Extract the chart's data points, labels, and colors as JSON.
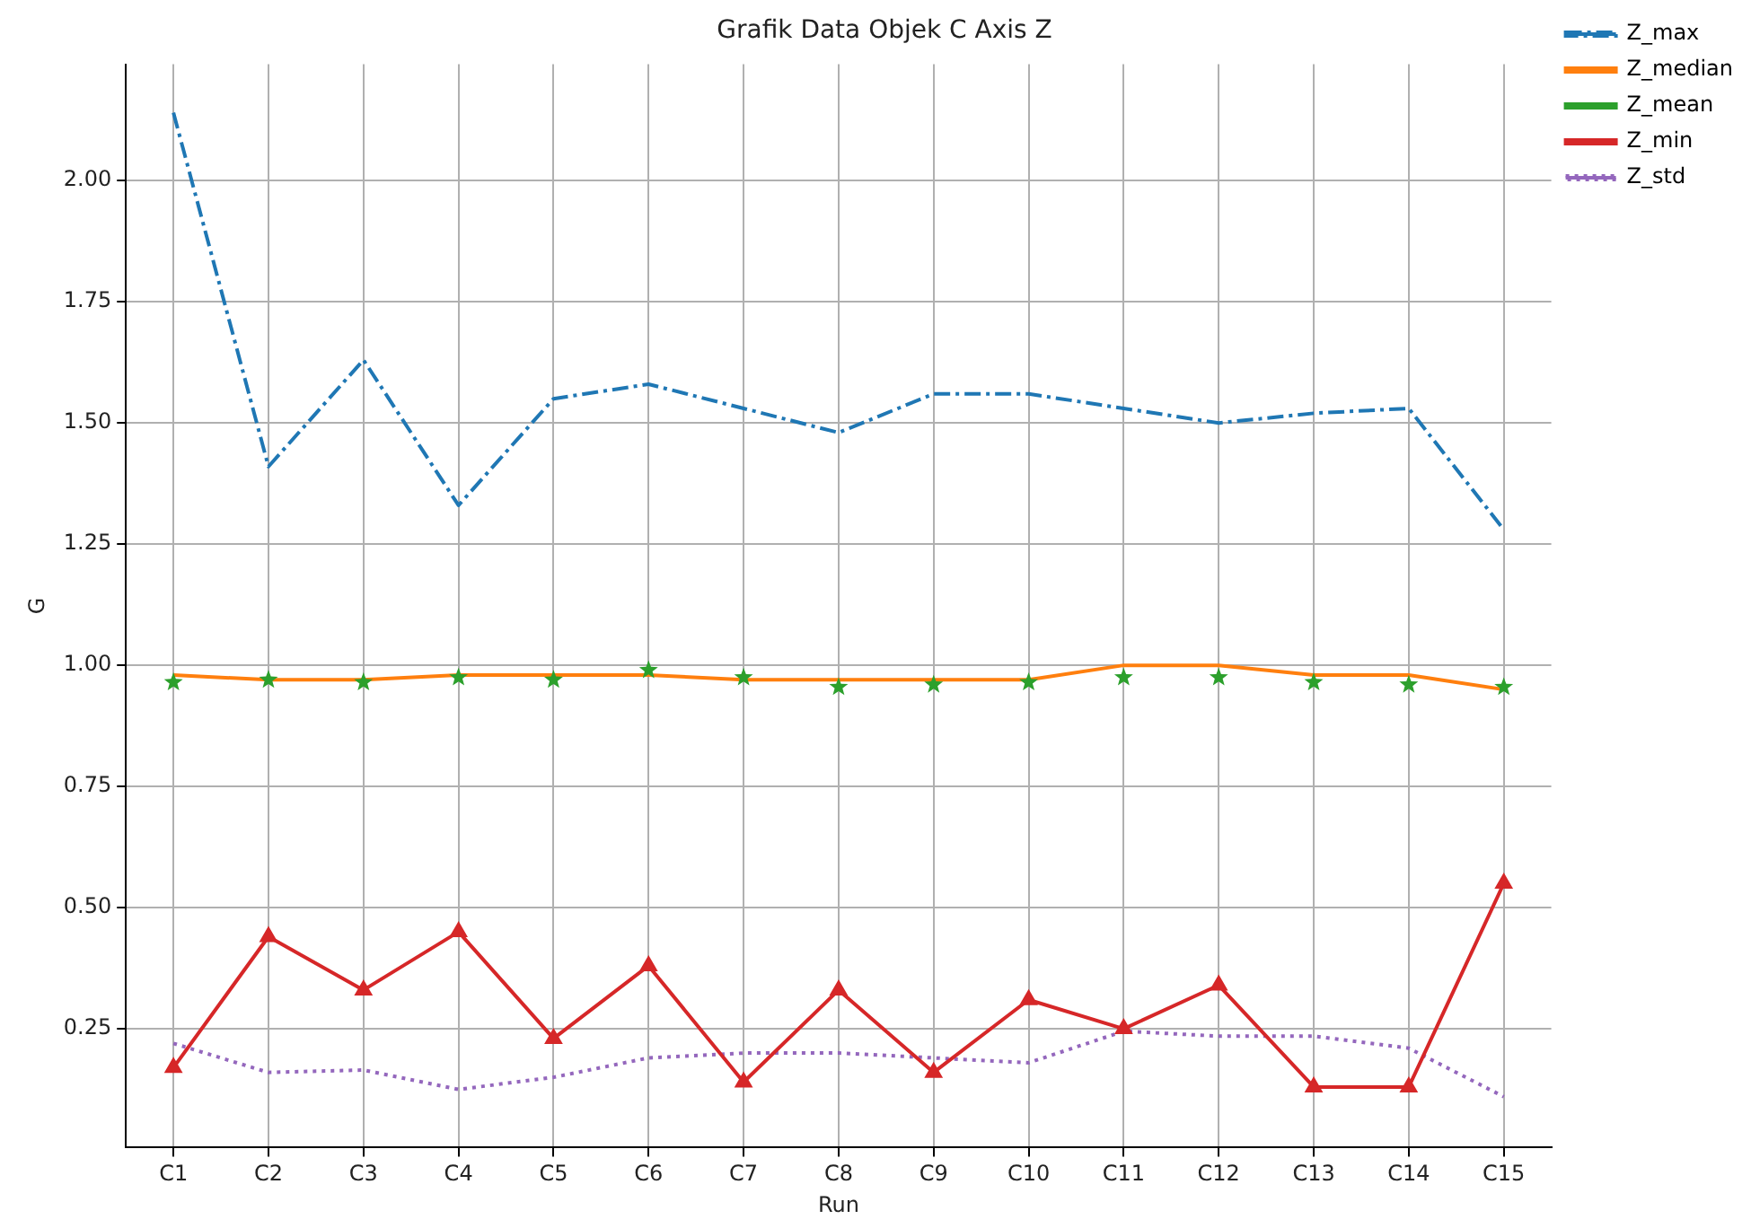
{
  "chart_data": {
    "type": "line",
    "title": "Grafik Data Objek C Axis Z",
    "xlabel": "Run",
    "ylabel": "G",
    "categories": [
      "C1",
      "C2",
      "C3",
      "C4",
      "C5",
      "C6",
      "C7",
      "C8",
      "C9",
      "C10",
      "C11",
      "C12",
      "C13",
      "C14",
      "C15"
    ],
    "series": [
      {
        "name": "Z_max",
        "color": "#1f77b4",
        "line_style": "dashed",
        "marker": "none",
        "values": [
          2.14,
          1.41,
          1.63,
          1.33,
          1.55,
          1.58,
          1.53,
          1.48,
          1.56,
          1.56,
          1.53,
          1.5,
          1.52,
          1.53,
          1.28
        ]
      },
      {
        "name": "Z_median",
        "color": "#ff7f0e",
        "line_style": "solid",
        "marker": "none",
        "values": [
          0.98,
          0.97,
          0.97,
          0.98,
          0.98,
          0.98,
          0.97,
          0.97,
          0.97,
          0.97,
          1.0,
          1.0,
          0.98,
          0.98,
          0.95
        ]
      },
      {
        "name": "Z_mean",
        "type": "scatter",
        "color": "#2ca02c",
        "marker": "star",
        "values": [
          0.965,
          0.97,
          0.965,
          0.975,
          0.97,
          0.99,
          0.975,
          0.955,
          0.96,
          0.965,
          0.975,
          0.975,
          0.965,
          0.96,
          0.955
        ]
      },
      {
        "name": "Z_min",
        "color": "#d62728",
        "line_style": "solid",
        "marker": "triangle",
        "values": [
          0.17,
          0.44,
          0.33,
          0.45,
          0.23,
          0.38,
          0.14,
          0.33,
          0.16,
          0.31,
          0.25,
          0.34,
          0.13,
          0.13,
          0.55
        ]
      },
      {
        "name": "Z_std",
        "color": "#9467bd",
        "line_style": "dotted",
        "marker": "none",
        "values": [
          0.22,
          0.16,
          0.165,
          0.125,
          0.15,
          0.19,
          0.2,
          0.2,
          0.19,
          0.18,
          0.245,
          0.235,
          0.235,
          0.21,
          0.11
        ]
      }
    ],
    "ylim": [
      0.005,
      2.24
    ],
    "yticks": [
      0.25,
      {
        "value": 0.5,
        "label": "0.50"
      },
      0.75,
      {
        "value": 1.0,
        "label": "1.00"
      },
      1.25,
      {
        "value": 1.5,
        "label": "1.50"
      },
      1.75,
      {
        "value": 2.0,
        "label": "2.00"
      }
    ],
    "grid": true,
    "legend": "top right"
  }
}
